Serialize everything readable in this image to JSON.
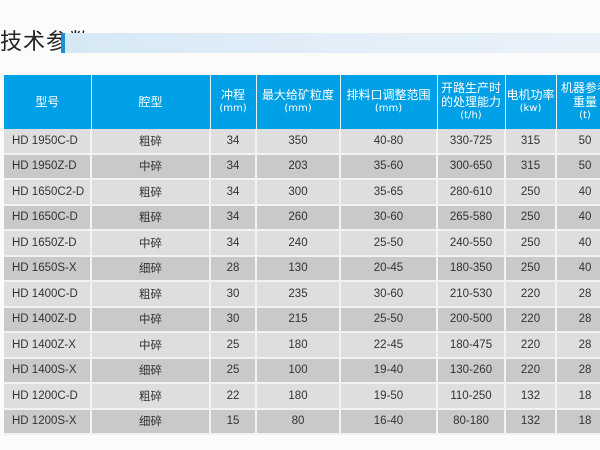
{
  "title": "技术参数",
  "headers": [
    {
      "label": "型号",
      "unit": ""
    },
    {
      "label": "腔型",
      "unit": ""
    },
    {
      "label": "冲程",
      "unit": "(mm)"
    },
    {
      "label": "最大给矿粒度",
      "unit": "(mm)"
    },
    {
      "label": "排料口调整范围",
      "unit": "(mm)"
    },
    {
      "label": "开路生产时的处理能力",
      "unit": "(t/h)"
    },
    {
      "label": "电机功率",
      "unit": "(kw)"
    },
    {
      "label": "机器参考重量",
      "unit": "(t)"
    }
  ],
  "rows": [
    [
      "HD 1950C-D",
      "粗碎",
      "34",
      "350",
      "40-80",
      "330-725",
      "315",
      "50"
    ],
    [
      "HD 1950Z-D",
      "中碎",
      "34",
      "203",
      "35-60",
      "300-650",
      "315",
      "50"
    ],
    [
      "HD 1650C2-D",
      "粗碎",
      "34",
      "300",
      "35-65",
      "280-610",
      "250",
      "40"
    ],
    [
      "HD 1650C-D",
      "粗碎",
      "34",
      "260",
      "30-60",
      "265-580",
      "250",
      "40"
    ],
    [
      "HD 1650Z-D",
      "中碎",
      "34",
      "240",
      "25-50",
      "240-550",
      "250",
      "40"
    ],
    [
      "HD 1650S-X",
      "细碎",
      "28",
      "130",
      "20-45",
      "180-350",
      "250",
      "40"
    ],
    [
      "HD 1400C-D",
      "粗碎",
      "30",
      "235",
      "30-60",
      "210-530",
      "220",
      "28"
    ],
    [
      "HD 1400Z-D",
      "中碎",
      "30",
      "215",
      "25-50",
      "200-500",
      "220",
      "28"
    ],
    [
      "HD 1400Z-X",
      "中碎",
      "25",
      "180",
      "22-45",
      "180-475",
      "220",
      "28"
    ],
    [
      "HD 1400S-X",
      "细碎",
      "25",
      "100",
      "19-40",
      "130-260",
      "220",
      "28"
    ],
    [
      "HD 1200C-D",
      "粗碎",
      "22",
      "180",
      "19-50",
      "110-250",
      "132",
      "18"
    ],
    [
      "HD 1200S-X",
      "细碎",
      "15",
      "80",
      "16-40",
      "80-180",
      "132",
      "18"
    ]
  ],
  "colors": {
    "header": "#00a0e6",
    "row_light": "#dedede",
    "row_dark": "#c9c9c9"
  }
}
